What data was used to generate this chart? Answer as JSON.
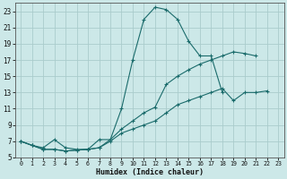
{
  "xlabel": "Humidex (Indice chaleur)",
  "bg_color": "#cce8e8",
  "grid_color": "#aacccc",
  "line_color": "#1a6b6b",
  "xlim": [
    -0.5,
    23.5
  ],
  "ylim": [
    5,
    24
  ],
  "xticks": [
    0,
    1,
    2,
    3,
    4,
    5,
    6,
    7,
    8,
    9,
    10,
    11,
    12,
    13,
    14,
    15,
    16,
    17,
    18,
    19,
    20,
    21,
    22,
    23
  ],
  "yticks": [
    5,
    7,
    9,
    11,
    13,
    15,
    17,
    19,
    21,
    23
  ],
  "series1_x": [
    0,
    1,
    2,
    3,
    4,
    5,
    6,
    7,
    8,
    9,
    10,
    11,
    12,
    13,
    14,
    15,
    16,
    17,
    18,
    19,
    20,
    21,
    22
  ],
  "series1_y": [
    7.0,
    6.5,
    6.2,
    7.2,
    6.2,
    6.0,
    6.0,
    7.2,
    7.2,
    11.0,
    17.0,
    22.0,
    23.5,
    23.2,
    22.0,
    19.3,
    17.5,
    17.5,
    13.0,
    null,
    null,
    null,
    null
  ],
  "series2_x": [
    0,
    1,
    2,
    3,
    4,
    5,
    6,
    7,
    8,
    9,
    10,
    11,
    12,
    13,
    14,
    15,
    16,
    17,
    18,
    19,
    20,
    21,
    22,
    23
  ],
  "series2_y": [
    7.0,
    6.5,
    6.0,
    6.0,
    5.8,
    5.9,
    6.0,
    6.2,
    7.2,
    8.5,
    9.5,
    10.5,
    11.2,
    14.0,
    15.0,
    15.8,
    16.5,
    17.0,
    17.5,
    18.0,
    17.8,
    17.5,
    null,
    null
  ],
  "series3_x": [
    0,
    1,
    2,
    3,
    4,
    5,
    6,
    7,
    8,
    9,
    10,
    11,
    12,
    13,
    14,
    15,
    16,
    17,
    18,
    19,
    20,
    21,
    22,
    23
  ],
  "series3_y": [
    7.0,
    6.5,
    6.0,
    6.0,
    5.8,
    5.9,
    6.0,
    6.2,
    7.0,
    8.0,
    8.5,
    9.0,
    9.5,
    10.5,
    11.5,
    12.0,
    12.5,
    13.0,
    13.5,
    12.0,
    13.0,
    13.0,
    13.2,
    null
  ]
}
